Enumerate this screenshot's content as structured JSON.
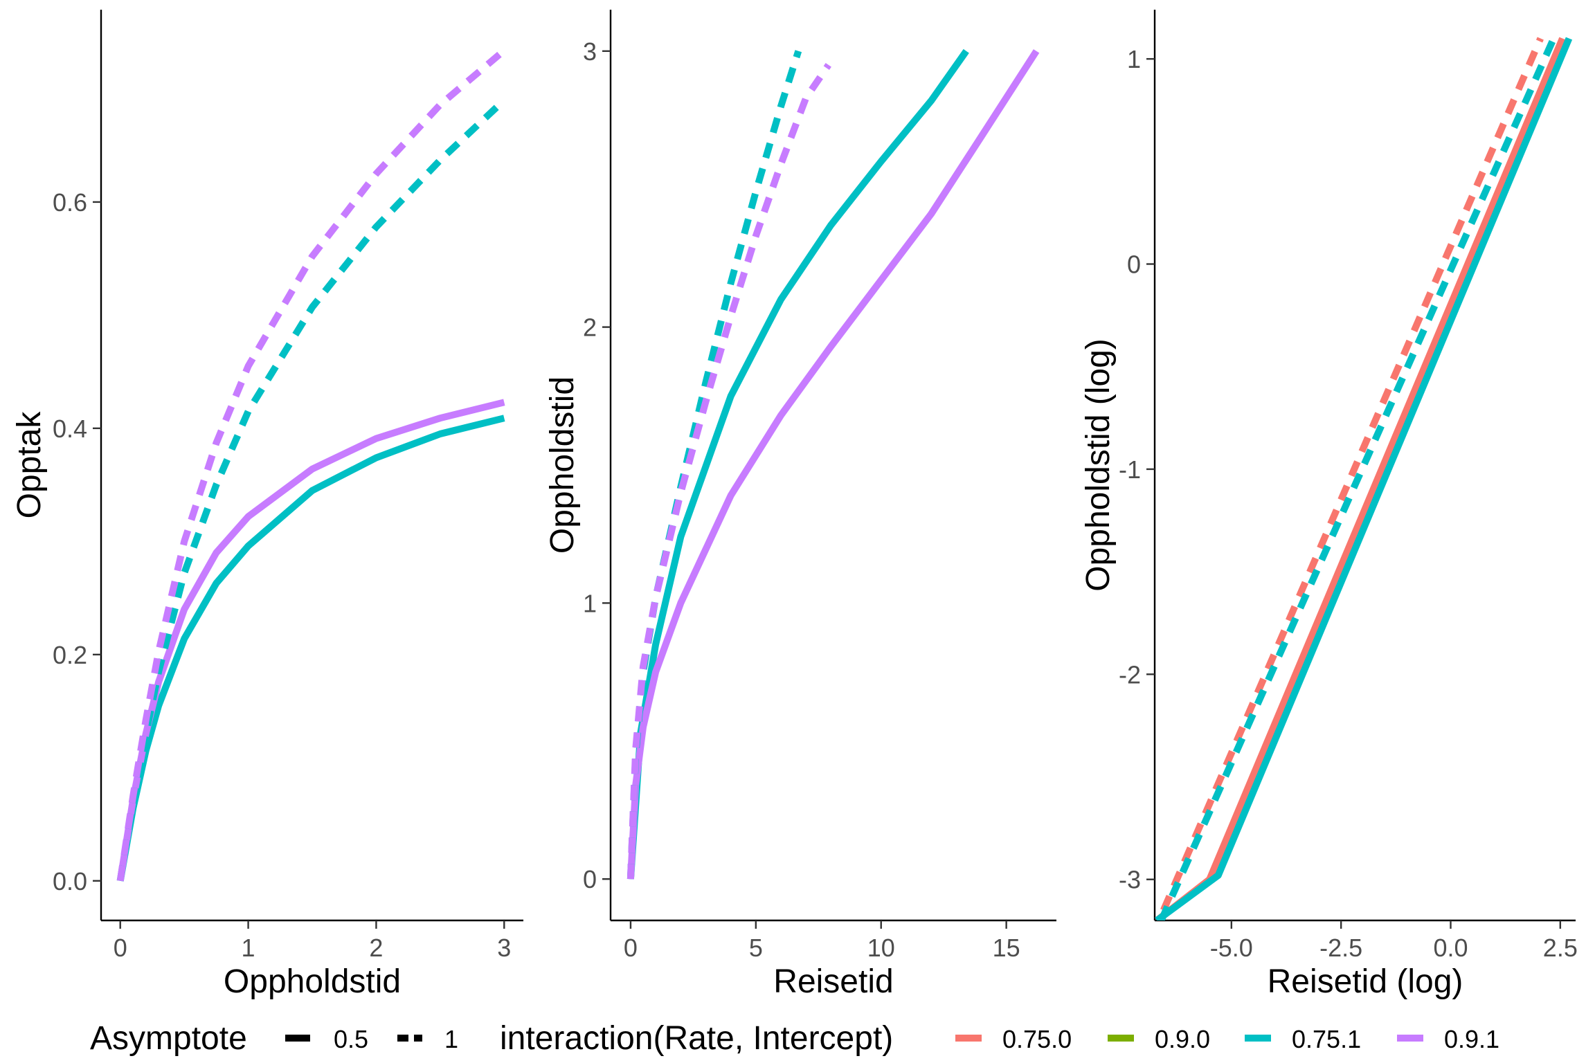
{
  "chart_data": [
    {
      "type": "line",
      "xlabel": "Oppholdstid",
      "ylabel": "Opptak",
      "xlim": [
        -0.15,
        3.15
      ],
      "ylim": [
        -0.035,
        0.77
      ],
      "x_ticks": [
        0,
        1,
        2,
        3
      ],
      "x_tick_labels": [
        "0",
        "1",
        "2",
        "3"
      ],
      "y_ticks": [
        0.0,
        0.2,
        0.4,
        0.6
      ],
      "y_tick_labels": [
        "0.0",
        "0.2",
        "0.4",
        "0.6"
      ],
      "series": [
        {
          "name": "0.75.1",
          "asymptote": "0.5",
          "color_key": "0.75.1",
          "x": [
            0,
            0.1,
            0.2,
            0.3,
            0.5,
            0.75,
            1.0,
            1.5,
            2.0,
            2.5,
            3.0
          ],
          "y": [
            0,
            0.064,
            0.115,
            0.155,
            0.214,
            0.263,
            0.296,
            0.345,
            0.374,
            0.395,
            0.409
          ]
        },
        {
          "name": "0.9.1",
          "asymptote": "0.5",
          "color_key": "0.9.1",
          "x": [
            0,
            0.1,
            0.2,
            0.3,
            0.5,
            0.75,
            1.0,
            1.5,
            2.0,
            2.5,
            3.0
          ],
          "y": [
            0,
            0.072,
            0.13,
            0.176,
            0.24,
            0.29,
            0.322,
            0.364,
            0.391,
            0.409,
            0.423
          ]
        },
        {
          "name": "0.75.1",
          "asymptote": "1",
          "color_key": "0.75.1",
          "x": [
            0,
            0.1,
            0.2,
            0.3,
            0.5,
            0.75,
            1.0,
            1.5,
            2.0,
            2.5,
            3.0
          ],
          "y": [
            0,
            0.07,
            0.13,
            0.185,
            0.272,
            0.35,
            0.415,
            0.507,
            0.578,
            0.637,
            0.69
          ]
        },
        {
          "name": "0.9.1",
          "asymptote": "1",
          "color_key": "0.9.1",
          "x": [
            0,
            0.1,
            0.2,
            0.3,
            0.5,
            0.75,
            1.0,
            1.5,
            2.0,
            2.5,
            3.0
          ],
          "y": [
            0,
            0.075,
            0.142,
            0.203,
            0.3,
            0.387,
            0.455,
            0.552,
            0.625,
            0.686,
            0.734
          ]
        }
      ]
    },
    {
      "type": "line",
      "xlabel": "Reisetid",
      "ylabel": "Oppholdstid",
      "xlim": [
        -0.8,
        17.0
      ],
      "ylim": [
        -0.15,
        3.15
      ],
      "x_ticks": [
        0,
        5,
        10,
        15
      ],
      "x_tick_labels": [
        "0",
        "5",
        "10",
        "15"
      ],
      "y_ticks": [
        0,
        1,
        2,
        3
      ],
      "y_tick_labels": [
        "0",
        "1",
        "2",
        "3"
      ],
      "series": [
        {
          "name": "0.75.1",
          "asymptote": "0.5",
          "color_key": "0.75.1",
          "x": [
            0,
            0.4,
            1,
            2,
            4,
            6,
            8,
            10,
            12,
            13.4
          ],
          "y": [
            0,
            0.53,
            0.85,
            1.24,
            1.75,
            2.1,
            2.37,
            2.6,
            2.82,
            3.0
          ]
        },
        {
          "name": "0.9.1",
          "asymptote": "0.5",
          "color_key": "0.9.1",
          "x": [
            0,
            0.2,
            0.5,
            1,
            2,
            4,
            6,
            8,
            10,
            12,
            14,
            16.2
          ],
          "y": [
            0,
            0.34,
            0.55,
            0.75,
            1.0,
            1.39,
            1.68,
            1.93,
            2.17,
            2.41,
            2.69,
            3.0
          ]
        },
        {
          "name": "0.75.1",
          "asymptote": "1",
          "color_key": "0.75.1",
          "x": [
            0,
            0.2,
            0.5,
            1,
            2,
            3,
            4,
            5,
            6,
            6.7
          ],
          "y": [
            0,
            0.45,
            0.75,
            1.02,
            1.42,
            1.8,
            2.16,
            2.49,
            2.8,
            3.0
          ]
        },
        {
          "name": "0.9.1",
          "asymptote": "1",
          "color_key": "0.9.1",
          "x": [
            0,
            0.2,
            0.5,
            1,
            2,
            3,
            4,
            5,
            6,
            7,
            7.9
          ],
          "y": [
            0,
            0.47,
            0.77,
            1.02,
            1.4,
            1.73,
            2.04,
            2.33,
            2.59,
            2.83,
            2.95
          ]
        }
      ]
    },
    {
      "type": "line",
      "xlabel": "Reisetid (log)",
      "ylabel": "Oppholdstid (log)",
      "xlim": [
        -6.75,
        2.85
      ],
      "ylim": [
        -3.2,
        1.24
      ],
      "x_ticks": [
        -5.0,
        -2.5,
        0.0,
        2.5
      ],
      "x_tick_labels": [
        "-5.0",
        "-2.5",
        "0.0",
        "2.5"
      ],
      "y_ticks": [
        -3,
        -2,
        -1,
        0,
        1
      ],
      "y_tick_labels": [
        "-3",
        "-2",
        "-1",
        "0",
        "1"
      ],
      "series": [
        {
          "name": "0.75.0",
          "asymptote": "0.5",
          "color_key": "0.75.0",
          "x": [
            -6.7,
            -5.5,
            2.55
          ],
          "y": [
            -3.2,
            -3.0,
            1.1
          ]
        },
        {
          "name": "0.75.1",
          "asymptote": "0.5",
          "color_key": "0.75.1",
          "x": [
            -6.7,
            -5.3,
            2.7
          ],
          "y": [
            -3.2,
            -2.98,
            1.1
          ]
        },
        {
          "name": "0.75.0",
          "asymptote": "1",
          "color_key": "0.75.0",
          "x": [
            -6.55,
            2.05
          ],
          "y": [
            -3.15,
            1.1
          ]
        },
        {
          "name": "0.75.1",
          "asymptote": "1",
          "color_key": "0.75.1",
          "x": [
            -6.6,
            2.35
          ],
          "y": [
            -3.2,
            1.1
          ]
        }
      ]
    }
  ],
  "legend": {
    "placement": "bottom",
    "asymptote_title": "Asymptote",
    "asymptote_items": [
      {
        "label": "0.5",
        "dash": "solid"
      },
      {
        "label": "1",
        "dash": "dashed"
      }
    ],
    "interaction_title": "interaction(Rate, Intercept)",
    "interaction_items": [
      {
        "label": "0.75.0",
        "color": "#f8766d"
      },
      {
        "label": "0.9.0",
        "color": "#7cae00"
      },
      {
        "label": "0.75.1",
        "color": "#00bfc4"
      },
      {
        "label": "0.9.1",
        "color": "#c77cff"
      }
    ]
  },
  "colors": {
    "0.75.0": "#f8766d",
    "0.9.0": "#7cae00",
    "0.75.1": "#00bfc4",
    "0.9.1": "#c77cff"
  }
}
